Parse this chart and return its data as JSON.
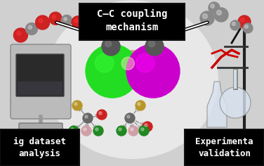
{
  "title_text": "C–C coupling\nmechanism",
  "left_label_line1": "ig dataset",
  "left_label_line2": "analysis",
  "right_label_line1": "Experimenta",
  "right_label_line2": "validation",
  "bg_color": "#d0d0d0",
  "dome_color": "#e8e8e8",
  "title_box_color": "#000000",
  "title_text_color": "#ffffff",
  "label_box_color": "#000000",
  "label_text_color": "#ffffff",
  "figsize": [
    3.76,
    2.36
  ],
  "dpi": 100,
  "sphere_green": "#22dd22",
  "sphere_magenta": "#cc00cc",
  "sphere_salmon": "#d4937a",
  "sphere_dark": "#555555",
  "sphere_red": "#cc2222",
  "sphere_white": "#e8e8e8",
  "sphere_grey": "#888888",
  "font_family": "monospace",
  "title_fontsize": 10,
  "label_fontsize": 9
}
